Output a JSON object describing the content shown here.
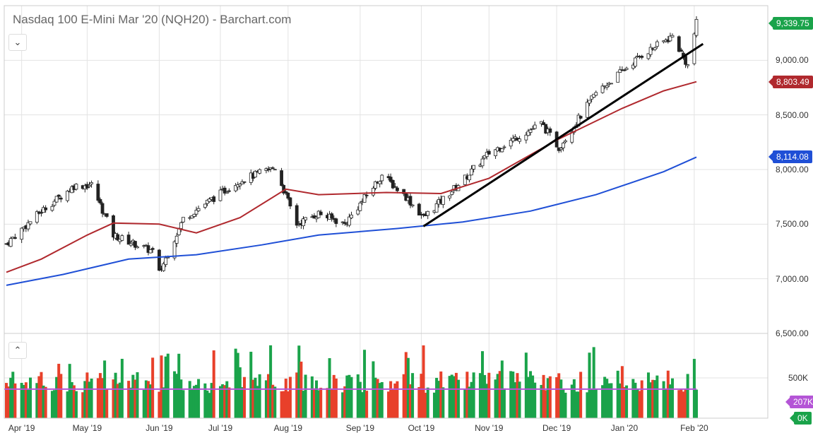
{
  "header": {
    "title": "Nasdaq 100 E-Mini Mar '20 (NQH20) - Barchart.com"
  },
  "controls": {
    "collapse_price_icon": "chevron-down-icon",
    "collapse_volume_icon": "chevron-up-icon"
  },
  "colors": {
    "up": "#1aa34a",
    "down": "#e8402a",
    "ma50": "#b0292e",
    "ma200": "#1f4fd6",
    "trendline": "#000000",
    "volume_avg": "#b455d6"
  },
  "chart_data": {
    "type": "candlestick",
    "price_axis": {
      "min": 6500,
      "max": 9500,
      "ticks": [
        {
          "value": 9000,
          "label": "9,000.00"
        },
        {
          "value": 8500,
          "label": "8,500.00"
        },
        {
          "value": 8000,
          "label": "8,000.00"
        },
        {
          "value": 7500,
          "label": "7,500.00"
        },
        {
          "value": 7000,
          "label": "7,000.00"
        },
        {
          "value": 6500,
          "label": "6,500.00"
        }
      ]
    },
    "volume_axis": {
      "max": 1000000,
      "ticks": [
        {
          "value": 500000,
          "label": "500K"
        }
      ]
    },
    "x_axis": {
      "start": "2019-03-25",
      "end": "2020-02-04",
      "ticks": [
        {
          "date": "2019-04-01",
          "label": "Apr '19"
        },
        {
          "date": "2019-05-01",
          "label": "May '19"
        },
        {
          "date": "2019-06-03",
          "label": "Jun '19"
        },
        {
          "date": "2019-07-01",
          "label": "Jul '19"
        },
        {
          "date": "2019-08-01",
          "label": "Aug '19"
        },
        {
          "date": "2019-09-03",
          "label": "Sep '19"
        },
        {
          "date": "2019-10-01",
          "label": "Oct '19"
        },
        {
          "date": "2019-11-01",
          "label": "Nov '19"
        },
        {
          "date": "2019-12-02",
          "label": "Dec '19"
        },
        {
          "date": "2020-01-02",
          "label": "Jan '20"
        },
        {
          "date": "2020-02-03",
          "label": "Feb '20"
        }
      ]
    },
    "price_path": [
      [
        "2019-03-25",
        7320
      ],
      [
        "2019-04-10",
        7620
      ],
      [
        "2019-04-25",
        7850
      ],
      [
        "2019-05-03",
        7860
      ],
      [
        "2019-05-13",
        7400
      ],
      [
        "2019-05-31",
        7250
      ],
      [
        "2019-06-03",
        7050
      ],
      [
        "2019-06-14",
        7550
      ],
      [
        "2019-06-25",
        7700
      ],
      [
        "2019-07-10",
        7900
      ],
      [
        "2019-07-26",
        8020
      ],
      [
        "2019-08-05",
        7500
      ],
      [
        "2019-08-15",
        7600
      ],
      [
        "2019-08-27",
        7500
      ],
      [
        "2019-09-13",
        7950
      ],
      [
        "2019-09-24",
        7750
      ],
      [
        "2019-10-02",
        7560
      ],
      [
        "2019-10-20",
        7900
      ],
      [
        "2019-11-01",
        8150
      ],
      [
        "2019-11-25",
        8420
      ],
      [
        "2019-12-03",
        8200
      ],
      [
        "2019-12-20",
        8700
      ],
      [
        "2020-01-10",
        9050
      ],
      [
        "2020-01-24",
        9220
      ],
      [
        "2020-01-31",
        8950
      ],
      [
        "2020-02-04",
        9339.75
      ]
    ],
    "moving_average_50": [
      [
        "2019-03-25",
        7060
      ],
      [
        "2019-04-10",
        7180
      ],
      [
        "2019-05-01",
        7400
      ],
      [
        "2019-05-13",
        7510
      ],
      [
        "2019-06-03",
        7500
      ],
      [
        "2019-06-20",
        7420
      ],
      [
        "2019-07-10",
        7560
      ],
      [
        "2019-07-31",
        7820
      ],
      [
        "2019-08-15",
        7770
      ],
      [
        "2019-09-15",
        7790
      ],
      [
        "2019-10-10",
        7780
      ],
      [
        "2019-11-01",
        7920
      ],
      [
        "2019-12-02",
        8270
      ],
      [
        "2020-01-01",
        8560
      ],
      [
        "2020-01-20",
        8720
      ],
      [
        "2020-02-04",
        8803.49
      ]
    ],
    "moving_average_200": [
      [
        "2019-03-25",
        6940
      ],
      [
        "2019-04-20",
        7040
      ],
      [
        "2019-05-20",
        7180
      ],
      [
        "2019-06-20",
        7220
      ],
      [
        "2019-07-20",
        7310
      ],
      [
        "2019-08-15",
        7400
      ],
      [
        "2019-09-20",
        7460
      ],
      [
        "2019-10-20",
        7520
      ],
      [
        "2019-11-20",
        7620
      ],
      [
        "2019-12-20",
        7770
      ],
      [
        "2020-01-20",
        7980
      ],
      [
        "2020-02-04",
        8114.08
      ]
    ],
    "trendline": [
      [
        "2019-10-02",
        7480
      ],
      [
        "2020-02-07",
        9150
      ]
    ],
    "volume_average_level": 207000,
    "last_price": {
      "value": 9339.75,
      "label": "9,339.75"
    },
    "ma50_last": {
      "value": 8803.49,
      "label": "8,803.49"
    },
    "ma200_last": {
      "value": 8114.08,
      "label": "8,114.08"
    },
    "volume_avg_label": "207K",
    "volume_last_label": "0K"
  }
}
